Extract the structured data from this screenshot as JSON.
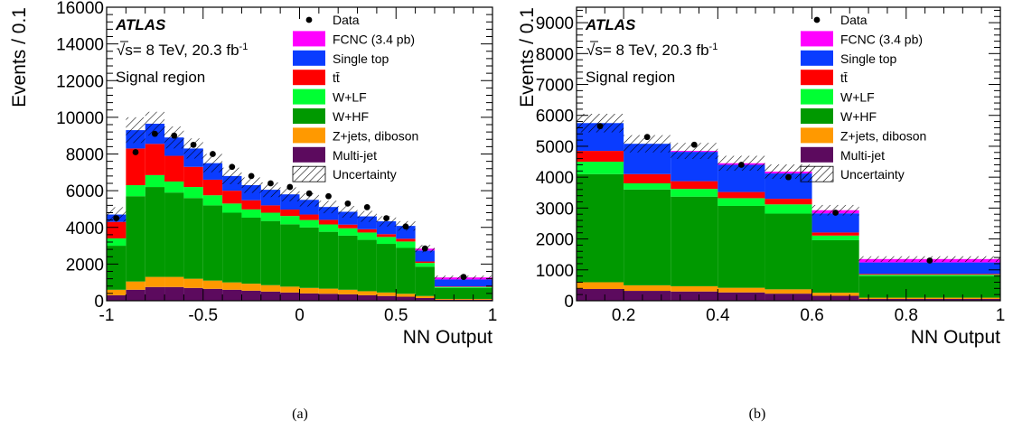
{
  "colors": {
    "multijet": "#5c0a5e",
    "zjets": "#ff9900",
    "whf": "#009900",
    "wlf": "#00ff33",
    "ttbar": "#ff0000",
    "singletop": "#0a3cff",
    "fcnc": "#ff00ff"
  },
  "chart_data": [
    {
      "type": "bar",
      "stacked": true,
      "panel_label": "(a)",
      "experiment": "ATLAS",
      "energy_text": "√s= 8 TeV,  20.3 fb",
      "lumi_exp": "-1",
      "region": "Signal region",
      "xlabel": "NN Output",
      "ylabel": "Events / 0.1",
      "xlim": [
        -1,
        1
      ],
      "ylim": [
        0,
        16000
      ],
      "xticks": [
        -1,
        -0.5,
        0,
        0.5,
        1
      ],
      "xtick_labels": [
        "-1",
        "-0.5",
        "0",
        "0.5",
        "1"
      ],
      "yticks": [
        0,
        2000,
        4000,
        6000,
        8000,
        10000,
        12000,
        14000,
        16000
      ],
      "ytick_labels": [
        "0",
        "2000",
        "4000",
        "6000",
        "8000",
        "10000",
        "12000",
        "14000",
        "16000"
      ],
      "bin_edges": [
        -1,
        -0.9,
        -0.8,
        -0.7,
        -0.6,
        -0.5,
        -0.4,
        -0.3,
        -0.2,
        -0.1,
        0,
        0.1,
        0.2,
        0.3,
        0.4,
        0.5,
        0.6,
        0.7,
        1.0
      ],
      "series": [
        {
          "name": "Multi-jet",
          "key": "multijet",
          "values": [
            300,
            600,
            750,
            750,
            700,
            650,
            600,
            550,
            500,
            450,
            400,
            380,
            350,
            300,
            260,
            220,
            150,
            60
          ]
        },
        {
          "name": "Z+jets, diboson",
          "key": "zjets",
          "values": [
            300,
            450,
            550,
            550,
            500,
            450,
            400,
            380,
            350,
            320,
            300,
            280,
            250,
            220,
            190,
            160,
            110,
            40
          ]
        },
        {
          "name": "W+HF",
          "key": "whf",
          "values": [
            2400,
            4650,
            4900,
            4600,
            4400,
            4100,
            3800,
            3600,
            3500,
            3400,
            3300,
            3100,
            2950,
            2800,
            2650,
            2500,
            1600,
            600
          ]
        },
        {
          "name": "W+LF",
          "key": "wlf",
          "values": [
            400,
            600,
            650,
            600,
            600,
            550,
            500,
            450,
            450,
            450,
            400,
            400,
            400,
            400,
            380,
            350,
            200,
            50
          ]
        },
        {
          "name": "tt̄",
          "key": "ttbar",
          "values": [
            900,
            2000,
            1700,
            1400,
            1100,
            850,
            700,
            500,
            400,
            350,
            300,
            250,
            200,
            180,
            150,
            150,
            80,
            30
          ]
        },
        {
          "name": "Single top",
          "key": "singletop",
          "values": [
            400,
            1000,
            1100,
            1000,
            1000,
            900,
            800,
            820,
            850,
            830,
            800,
            700,
            700,
            700,
            700,
            700,
            600,
            380
          ]
        },
        {
          "name": "FCNC (3.4 pb)",
          "key": "fcnc",
          "values": [
            0,
            0,
            0,
            0,
            0,
            0,
            0,
            0,
            0,
            0,
            0,
            0,
            0,
            0,
            0,
            0,
            100,
            110
          ]
        }
      ],
      "data_points": [
        4500,
        8100,
        9100,
        9000,
        8500,
        8000,
        7300,
        6800,
        6400,
        6200,
        5850,
        5700,
        5300,
        5100,
        4500,
        4050,
        2850,
        1300
      ],
      "uncertainty": [
        400,
        700,
        650,
        600,
        550,
        500,
        450,
        420,
        400,
        380,
        360,
        340,
        320,
        300,
        280,
        260,
        200,
        100
      ],
      "legend": {
        "data": "Data",
        "uncertainty": "Uncertainty",
        "order": [
          "fcnc",
          "singletop",
          "ttbar",
          "wlf",
          "whf",
          "zjets",
          "multijet"
        ]
      }
    },
    {
      "type": "bar",
      "stacked": true,
      "panel_label": "(b)",
      "experiment": "ATLAS",
      "energy_text": "√s= 8 TeV,  20.3 fb",
      "lumi_exp": "-1",
      "region": "Signal region",
      "xlabel": "NN Output",
      "ylabel": "Events / 0.1",
      "xlim": [
        0.1,
        1
      ],
      "ylim": [
        0,
        9500
      ],
      "xticks": [
        0.2,
        0.4,
        0.6,
        0.8,
        1
      ],
      "xtick_labels": [
        "0.2",
        "0.4",
        "0.6",
        "0.8",
        "1"
      ],
      "yticks": [
        0,
        1000,
        2000,
        3000,
        4000,
        5000,
        6000,
        7000,
        8000,
        9000
      ],
      "ytick_labels": [
        "0",
        "1000",
        "2000",
        "3000",
        "4000",
        "5000",
        "6000",
        "7000",
        "8000",
        "9000"
      ],
      "bin_edges": [
        0.1,
        0.2,
        0.3,
        0.4,
        0.5,
        0.6,
        0.7,
        1.0
      ],
      "series": [
        {
          "name": "Multi-jet",
          "key": "multijet",
          "values": [
            380,
            320,
            300,
            270,
            230,
            160,
            60
          ]
        },
        {
          "name": "Z+jets, diboson",
          "key": "zjets",
          "values": [
            220,
            180,
            170,
            150,
            140,
            100,
            40
          ]
        },
        {
          "name": "W+HF",
          "key": "whf",
          "values": [
            3500,
            3100,
            2900,
            2650,
            2450,
            1700,
            700
          ]
        },
        {
          "name": "W+LF",
          "key": "wlf",
          "values": [
            400,
            200,
            250,
            250,
            300,
            150,
            40
          ]
        },
        {
          "name": "tt̄",
          "key": "ttbar",
          "values": [
            350,
            300,
            250,
            200,
            180,
            100,
            30
          ]
        },
        {
          "name": "Single top",
          "key": "singletop",
          "values": [
            900,
            980,
            950,
            880,
            820,
            620,
            370
          ]
        },
        {
          "name": "FCNC (3.4 pb)",
          "key": "fcnc",
          "values": [
            0,
            0,
            30,
            50,
            60,
            100,
            110
          ]
        }
      ],
      "data_points": [
        5650,
        5300,
        5050,
        4400,
        4000,
        2850,
        1300
      ],
      "uncertainty": [
        300,
        280,
        260,
        240,
        230,
        170,
        90
      ],
      "legend": {
        "data": "Data",
        "uncertainty": "Uncertainty",
        "order": [
          "fcnc",
          "singletop",
          "ttbar",
          "wlf",
          "whf",
          "zjets",
          "multijet"
        ]
      }
    }
  ]
}
